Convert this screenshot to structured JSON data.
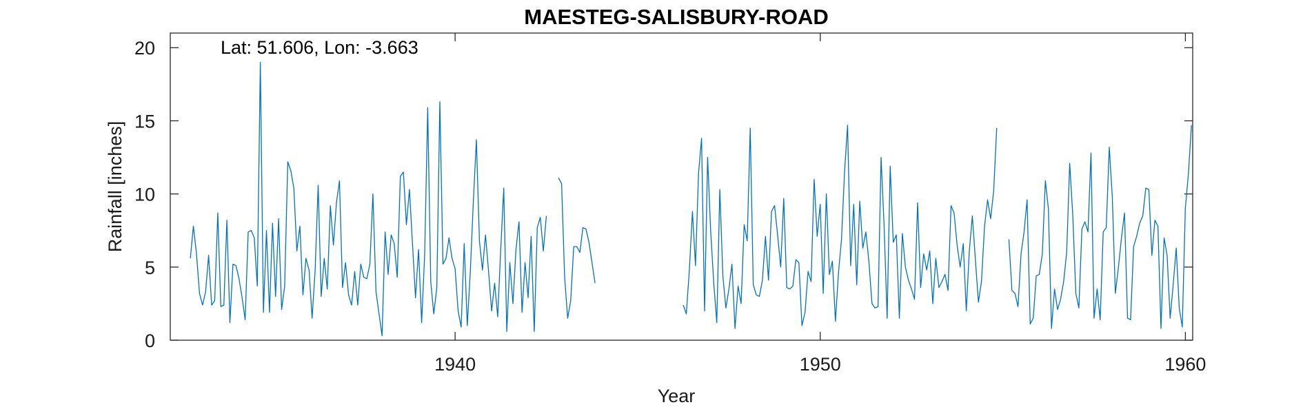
{
  "chart_data": {
    "type": "line",
    "title": "MAESTEG-SALISBURY-ROAD",
    "annotation": "Lat: 51.606, Lon: -3.663",
    "xlabel": "Year",
    "ylabel": "Rainfall [inches]",
    "xlim": [
      1932.2,
      1960.2
    ],
    "ylim": [
      0,
      21
    ],
    "xticks": [
      1940,
      1950,
      1960
    ],
    "yticks": [
      0,
      5,
      10,
      15,
      20
    ],
    "grid": false,
    "line_color": "#0072BD",
    "series": [
      {
        "x0": 1932.75,
        "dx": 0.08333,
        "values": [
          5.6,
          7.8,
          5.9,
          3.2,
          2.4,
          3.3,
          5.8,
          2.4,
          2.7,
          8.7,
          2.3,
          2.4,
          8.2,
          1.2,
          5.2,
          5.1,
          4.2,
          2.9,
          1.4,
          7.4,
          7.5,
          7.0,
          3.7,
          19.0,
          1.9,
          7.5,
          1.9,
          8.0,
          3.0,
          8.3,
          2.1,
          3.7,
          12.2,
          11.6,
          10.4,
          6.1,
          7.8,
          3.1,
          5.6,
          4.8,
          1.5,
          4.8,
          10.6,
          3.0,
          5.6,
          3.5,
          9.2,
          6.5,
          9.4,
          10.9,
          3.6,
          5.3,
          3.1,
          2.4,
          4.7,
          2.4,
          5.2,
          4.3,
          4.2,
          5.2,
          10.0,
          3.3,
          1.8,
          0.3,
          7.4,
          4.5,
          7.2,
          6.6,
          4.3,
          11.2,
          11.5,
          7.9,
          10.3,
          6.6,
          2.9,
          6.2,
          1.2,
          5.9,
          15.9,
          4.0,
          1.8,
          3.6,
          16.3,
          5.2,
          5.6,
          7.0,
          5.6,
          4.9,
          2.0,
          0.9,
          6.6,
          1.0,
          4.7,
          9.5,
          13.7,
          6.8,
          4.8,
          7.2,
          4.7,
          2.0,
          3.9,
          1.6,
          6.2,
          10.4,
          0.6,
          5.3,
          2.5,
          6.2,
          8.1,
          1.9,
          5.3,
          2.9,
          7.1,
          0.6,
          7.7,
          8.4,
          6.1,
          8.5,
          null,
          null,
          null,
          11.1,
          10.7,
          4.3,
          1.5,
          2.7,
          6.4,
          6.4,
          6.0,
          7.7,
          7.6,
          6.7,
          5.3,
          3.9,
          null,
          null,
          null,
          null,
          null,
          null,
          null,
          null,
          null,
          null,
          null,
          null,
          null,
          null,
          null,
          null,
          null,
          null,
          null,
          null,
          null,
          null,
          null,
          null,
          null,
          null,
          null,
          null,
          2.4,
          1.8,
          4.8,
          8.8,
          5.1,
          11.4,
          13.8,
          2.0,
          12.5,
          7.5,
          3.9,
          1.2,
          10.3,
          4.4,
          2.2,
          3.5,
          5.2,
          0.8,
          3.7,
          2.5,
          7.9,
          6.8,
          14.5,
          3.8,
          3.1,
          3.0,
          4.1,
          7.1,
          4.1,
          8.8,
          9.2,
          7.2,
          5.0,
          9.7,
          3.6,
          3.5,
          3.7,
          5.5,
          5.3,
          1.0,
          1.9,
          4.7,
          4.0,
          11.0,
          7.1,
          9.3,
          3.2,
          10.0,
          4.5,
          5.4,
          1.3,
          4.6,
          6.9,
          11.5,
          14.7,
          5.1,
          9.3,
          3.8,
          9.5,
          6.3,
          7.4,
          5.4,
          2.5,
          2.2,
          2.3,
          12.5,
          7.8,
          1.5,
          11.9,
          6.7,
          7.2,
          1.5,
          7.3,
          5.0,
          4.1,
          3.5,
          2.8,
          9.4,
          3.6,
          5.9,
          4.8,
          6.1,
          2.5,
          5.6,
          3.6,
          4.0,
          4.5,
          3.4,
          9.2,
          8.7,
          6.5,
          5.0,
          6.6,
          2.0,
          6.1,
          8.5,
          5.5,
          2.6,
          4.0,
          7.8,
          9.6,
          8.3,
          10.2,
          14.5,
          null,
          null,
          null,
          6.9,
          3.4,
          3.2,
          2.3,
          5.9,
          7.4,
          9.6,
          1.1,
          1.5,
          4.4,
          4.5,
          5.9,
          10.9,
          9.0,
          0.8,
          3.5,
          2.1,
          2.8,
          4.0,
          6.0,
          12.1,
          8.6,
          3.2,
          2.2,
          7.6,
          8.1,
          7.4,
          12.8,
          1.5,
          3.5,
          1.4,
          7.4,
          7.7,
          13.2,
          9.8,
          3.2,
          5.0,
          7.0,
          8.7,
          1.5,
          1.4,
          6.4,
          7.1,
          8.0,
          8.5,
          10.4,
          10.3,
          5.8,
          8.2,
          7.8,
          0.8,
          7.0,
          5.8,
          1.5,
          3.8,
          6.3,
          2.2,
          0.9,
          9.0,
          11.4,
          14.7
        ]
      }
    ]
  }
}
